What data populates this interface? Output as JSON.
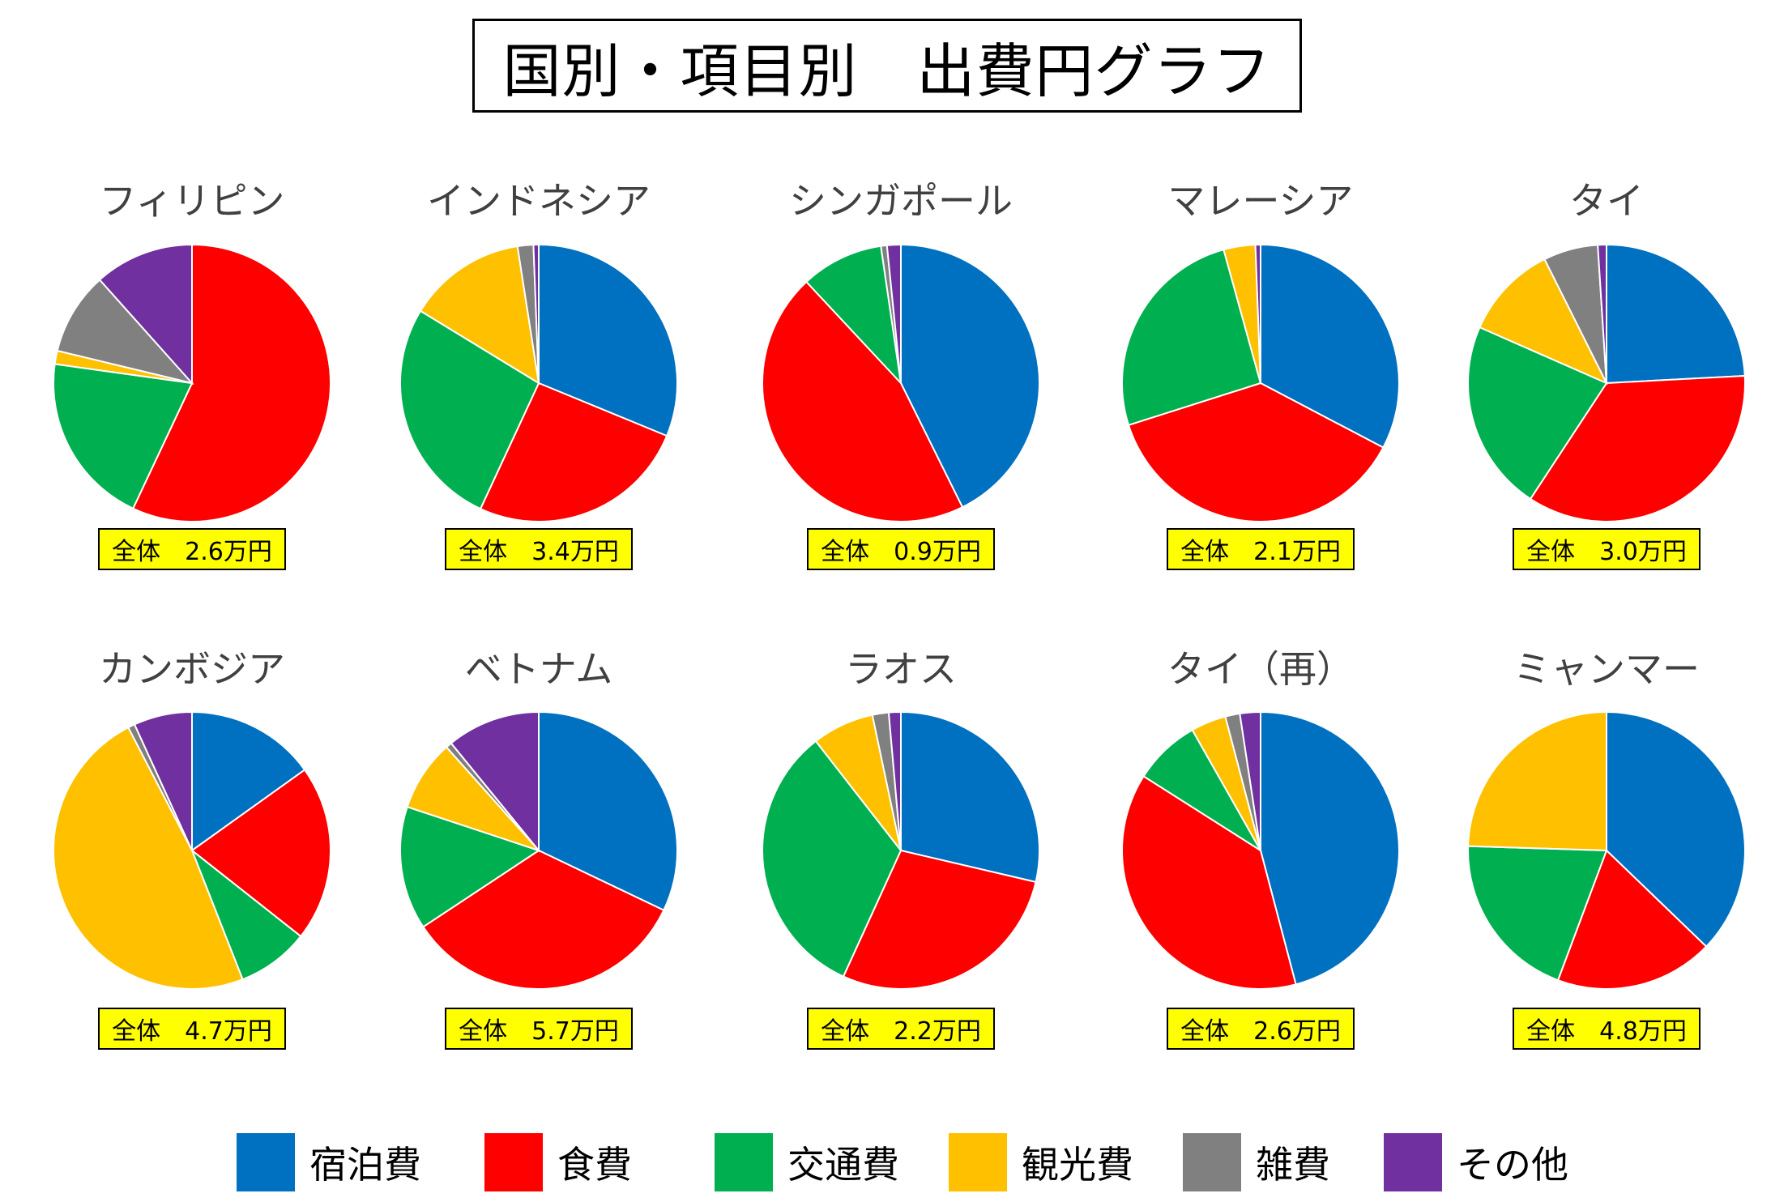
{
  "title": "国別・項目別　出費円グラフ",
  "legend_colors": [
    "#0070c0",
    "#ff0000",
    "#00b050",
    "#ffc000",
    "#808080",
    "#7030a0"
  ],
  "chart_data": {
    "type": "pie",
    "categories": [
      "宿泊費",
      "食費",
      "交通費",
      "観光費",
      "雑費",
      "その他"
    ],
    "charts": [
      {
        "name": "フィリピン",
        "total": "全体　2.6万円",
        "values": [
          0,
          55,
          19.5,
          1.5,
          9.3,
          11.2
        ]
      },
      {
        "name": "インドネシア",
        "total": "全体　3.4万円",
        "values": [
          30.5,
          25.1,
          26.2,
          13.5,
          1.8,
          0.6
        ]
      },
      {
        "name": "シンガポール",
        "total": "全体　0.9万円",
        "values": [
          42.5,
          45.2,
          9.6,
          0,
          0.7,
          1.6
        ]
      },
      {
        "name": "マレーシア",
        "total": "全体　2.1万円",
        "values": [
          32.7,
          37.4,
          25.6,
          3.7,
          0,
          0.6
        ]
      },
      {
        "name": "タイ",
        "total": "全体　3.0万円",
        "values": [
          23.9,
          34.7,
          22.1,
          10.9,
          6.3,
          1.0
        ]
      },
      {
        "name": "カンボジア",
        "total": "全体　4.7万円",
        "values": [
          15.1,
          20.5,
          8.4,
          48.3,
          0.8,
          6.8
        ]
      },
      {
        "name": "ベトナム",
        "total": "全体　5.7万円",
        "values": [
          32.1,
          33.6,
          14.4,
          8.3,
          0.7,
          10.9
        ]
      },
      {
        "name": "ラオス",
        "total": "全体　2.2万円",
        "values": [
          28.6,
          28.1,
          32.6,
          7.2,
          1.9,
          1.4
        ]
      },
      {
        "name": "タイ（再）",
        "total": "全体　2.6万円",
        "values": [
          45.9,
          38.1,
          7.8,
          4.1,
          1.7,
          2.4
        ]
      },
      {
        "name": "ミャンマー",
        "total": "全体　4.8万円",
        "values": [
          37.2,
          18.5,
          19.8,
          24.5,
          0,
          0
        ]
      }
    ]
  }
}
